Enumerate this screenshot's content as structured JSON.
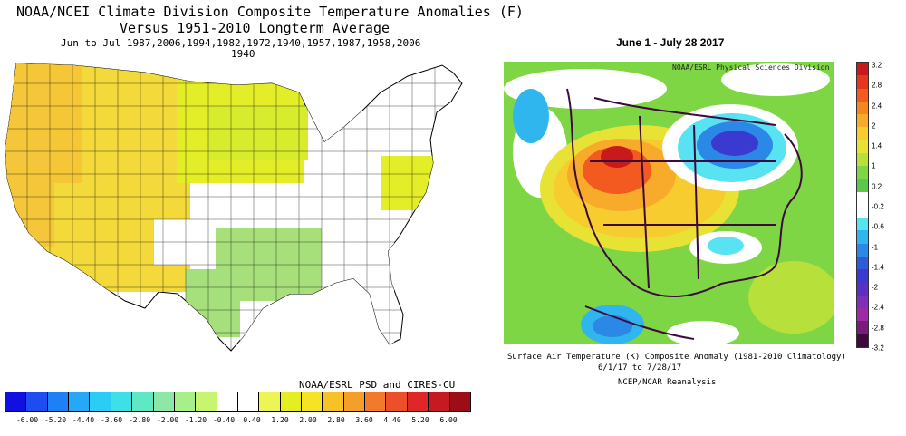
{
  "left_panel": {
    "title_line1": "NOAA/NCEI Climate Division Composite Temperature Anomalies (F)",
    "title_line2": "Versus 1951-2010 Longterm Average",
    "title_line3": "Jun to Jul  1987,2006,1994,1982,1972,1940,1957,1987,1958,2006",
    "title_line4": "1940",
    "credit": "NOAA/ESRL PSD and CIRES-CU",
    "colorbar": {
      "colors": [
        "#1010e0",
        "#1e4cf0",
        "#1f7ff5",
        "#25a8f5",
        "#2ccdf5",
        "#3fe0e5",
        "#5ee8c3",
        "#8de8a8",
        "#a6ef89",
        "#c7f570",
        "#ffffff",
        "#ffffff",
        "#ecf554",
        "#e5ee22",
        "#f7e326",
        "#f6c225",
        "#f49f2a",
        "#f27a2c",
        "#ec4f2a",
        "#de2726",
        "#c61a22",
        "#9b0d17"
      ],
      "ticks": [
        "-6.00",
        "-5.20",
        "-4.40",
        "-3.60",
        "-2.80",
        "-2.00",
        "-1.20",
        "-0.40",
        "0.40",
        "1.20",
        "2.00",
        "2.80",
        "3.60",
        "4.40",
        "5.20",
        "6.00"
      ]
    }
  },
  "right_panel": {
    "title": "June 1 - July 28 2017",
    "division": "NOAA/ESRL Physical Sciences Division",
    "caption_line1": "Surface Air Temperature (K) Composite Anomaly (1981-2010 Climatology)",
    "caption_line2": "6/1/17  to 7/28/17",
    "caption_line3": "NCEP/NCAR Reanalysis",
    "colorbar": {
      "colors": [
        "#c81a1a",
        "#e8351d",
        "#f25a1f",
        "#f6861f",
        "#f8aa2a",
        "#f6cc2e",
        "#e8e235",
        "#b7e03a",
        "#7fd645",
        "#5cc84a",
        "#ffffff",
        "#ffffff",
        "#57e3f2",
        "#2fb6ee",
        "#2b88e6",
        "#2f5bd8",
        "#3a3ad0",
        "#5b2fc4",
        "#7f2fb8",
        "#9f2aa5",
        "#7a1a7a",
        "#3d0a3d"
      ],
      "ticks": [
        "3.2",
        "2.8",
        "2.4",
        "2",
        "1.4",
        "1",
        "0.2",
        "-0.2",
        "-0.6",
        "-1",
        "-1.4",
        "-2",
        "-2.4",
        "-2.8",
        "-3.2"
      ]
    }
  }
}
